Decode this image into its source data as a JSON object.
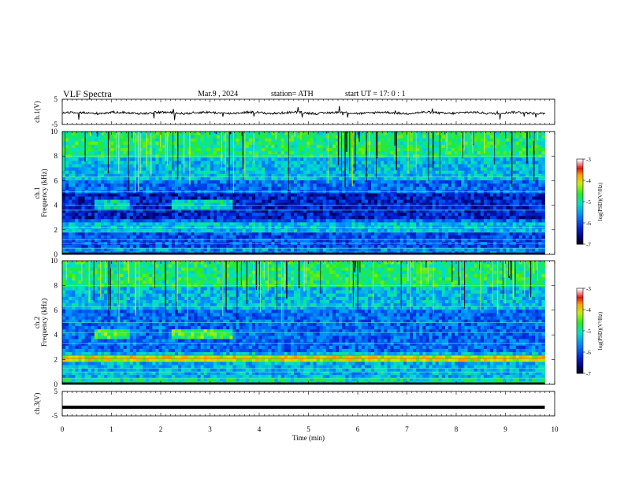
{
  "header": {
    "title": "VLF  Spectra",
    "date": "Mar.9  , 2024",
    "station": "station= ATH",
    "start_ut": "start  UT  =   17: 0  : 1"
  },
  "chart_data": [
    {
      "type": "line",
      "name": "ch1-waveform",
      "ylabel": "ch.1(V)",
      "ylim": [
        -5,
        5
      ],
      "yticks": [
        "5",
        "-5"
      ],
      "xlim": [
        0,
        10
      ],
      "line_color": "#000000"
    },
    {
      "type": "heatmap",
      "name": "ch1-spectrogram",
      "ylabel": [
        "ch.1",
        "Frequency  (kHz)"
      ],
      "ylim": [
        0,
        10
      ],
      "yticks": [
        "0",
        "2",
        "4",
        "6",
        "8",
        "10"
      ],
      "xlim": [
        0,
        10
      ],
      "data_end_min": 9.8,
      "colorbar": {
        "label": "log(PSD)(V²/Hz)",
        "range": [
          -7,
          -3
        ],
        "ticks": [
          "-3",
          "-4",
          "-5",
          "-6",
          "-7"
        ]
      }
    },
    {
      "type": "heatmap",
      "name": "ch2-spectrogram",
      "ylabel": [
        "ch.2",
        "Frequency  (kHz)"
      ],
      "ylim": [
        0,
        10
      ],
      "yticks": [
        "0",
        "2",
        "4",
        "6",
        "8",
        "10"
      ],
      "xlim": [
        0,
        10
      ],
      "data_end_min": 9.8,
      "colorbar": {
        "label": "log(PSD)(V²/Hz)",
        "range": [
          -7,
          -3
        ],
        "ticks": [
          "-3",
          "-4",
          "-5",
          "-6",
          "-7"
        ]
      }
    },
    {
      "type": "line",
      "name": "ch3-waveform",
      "ylabel": "ch.3(V)",
      "ylim": [
        -5,
        5
      ],
      "yticks": [
        "5",
        "-5"
      ],
      "xlim": [
        0,
        10
      ],
      "level_v": -1.5,
      "data_end_min": 9.8,
      "line_color": "#000000"
    }
  ],
  "x_axis": {
    "label": "Time  (min)",
    "ticks": [
      "0",
      "1",
      "2",
      "3",
      "4",
      "5",
      "6",
      "7",
      "8",
      "9",
      "10"
    ]
  }
}
